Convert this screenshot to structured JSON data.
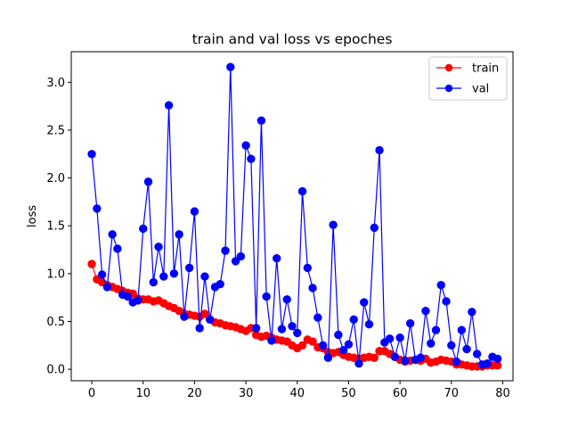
{
  "chart_data": {
    "type": "line",
    "title": "train and val loss vs epoches",
    "xlabel": "",
    "ylabel": "loss",
    "xlim": [
      -4,
      82
    ],
    "ylim": [
      -0.12,
      3.32
    ],
    "xticks": [
      0,
      10,
      20,
      30,
      40,
      50,
      60,
      70,
      80
    ],
    "yticks": [
      0.0,
      0.5,
      1.0,
      1.5,
      2.0,
      2.5,
      3.0
    ],
    "grid": false,
    "legend_position": "top-right",
    "x": [
      0,
      1,
      2,
      3,
      4,
      5,
      6,
      7,
      8,
      9,
      10,
      11,
      12,
      13,
      14,
      15,
      16,
      17,
      18,
      19,
      20,
      21,
      22,
      23,
      24,
      25,
      26,
      27,
      28,
      29,
      30,
      31,
      32,
      33,
      34,
      35,
      36,
      37,
      38,
      39,
      40,
      41,
      42,
      43,
      44,
      45,
      46,
      47,
      48,
      49,
      50,
      51,
      52,
      53,
      54,
      55,
      56,
      57,
      58,
      59,
      60,
      61,
      62,
      63,
      64,
      65,
      66,
      67,
      68,
      69,
      70,
      71,
      72,
      73,
      74,
      75,
      76,
      77,
      78,
      79
    ],
    "series": [
      {
        "name": "train",
        "color": "#ff0000",
        "values": [
          1.1,
          0.94,
          0.91,
          0.88,
          0.86,
          0.84,
          0.82,
          0.8,
          0.79,
          0.74,
          0.73,
          0.73,
          0.71,
          0.72,
          0.69,
          0.66,
          0.64,
          0.61,
          0.58,
          0.57,
          0.56,
          0.55,
          0.58,
          0.52,
          0.49,
          0.48,
          0.46,
          0.45,
          0.44,
          0.42,
          0.4,
          0.43,
          0.36,
          0.34,
          0.35,
          0.33,
          0.31,
          0.3,
          0.29,
          0.25,
          0.22,
          0.25,
          0.31,
          0.29,
          0.23,
          0.22,
          0.18,
          0.17,
          0.18,
          0.15,
          0.13,
          0.12,
          0.11,
          0.12,
          0.13,
          0.12,
          0.19,
          0.19,
          0.16,
          0.13,
          0.1,
          0.08,
          0.09,
          0.1,
          0.09,
          0.11,
          0.07,
          0.08,
          0.1,
          0.09,
          0.08,
          0.05,
          0.05,
          0.04,
          0.03,
          0.03,
          0.03,
          0.04,
          0.04,
          0.04
        ]
      },
      {
        "name": "val",
        "color": "#0000ff",
        "values": [
          2.25,
          1.68,
          0.99,
          0.86,
          1.41,
          1.26,
          0.78,
          0.76,
          0.7,
          0.72,
          1.47,
          1.96,
          0.91,
          1.28,
          0.97,
          2.76,
          1.0,
          1.41,
          0.55,
          1.06,
          1.65,
          0.43,
          0.97,
          0.52,
          0.86,
          0.89,
          1.24,
          3.16,
          1.13,
          1.18,
          2.34,
          2.2,
          0.43,
          2.6,
          0.76,
          0.3,
          1.16,
          0.42,
          0.73,
          0.45,
          0.38,
          1.86,
          1.06,
          0.85,
          0.54,
          0.25,
          0.12,
          1.51,
          0.36,
          0.2,
          0.26,
          0.52,
          0.06,
          0.7,
          0.47,
          1.48,
          2.29,
          0.28,
          0.32,
          0.13,
          0.33,
          0.09,
          0.48,
          0.1,
          0.12,
          0.61,
          0.27,
          0.41,
          0.88,
          0.71,
          0.25,
          0.08,
          0.41,
          0.21,
          0.6,
          0.16,
          0.05,
          0.06,
          0.13,
          0.11
        ]
      }
    ]
  }
}
